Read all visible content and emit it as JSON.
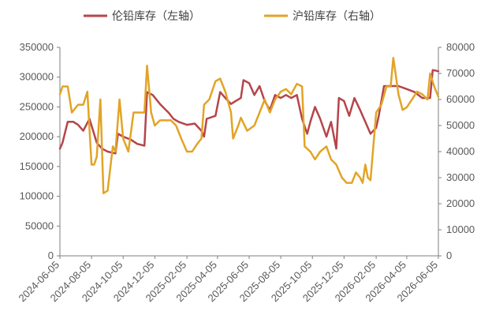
{
  "chart_data": {
    "type": "line",
    "legend_position": "top",
    "grid": false,
    "x_start": "2024-06-05",
    "x_end": "2026-06-05",
    "x_tick_labels": [
      "2024-06-05",
      "2024-08-05",
      "2024-10-05",
      "2024-12-05",
      "2025-02-05",
      "2025-04-05",
      "2025-06-05",
      "2025-08-05",
      "2025-10-05",
      "2025-12-05",
      "2026-02-05",
      "2026-04-05",
      "2026-06-05"
    ],
    "y_left": {
      "range": [
        0,
        350000
      ],
      "tick_labels": [
        "0",
        "50000",
        "100000",
        "150000",
        "200000",
        "250000",
        "300000",
        "350000"
      ]
    },
    "y_right": {
      "range": [
        0,
        80000
      ],
      "tick_labels": [
        "0",
        "10000",
        "20000",
        "30000",
        "40000",
        "50000",
        "60000",
        "70000",
        "80000"
      ]
    },
    "series": [
      {
        "name": "伦铅库存（左轴）",
        "axis": "left",
        "color": "#B5454A",
        "points": [
          [
            "2024-06-05",
            180000
          ],
          [
            "2024-06-10",
            190000
          ],
          [
            "2024-06-20",
            225000
          ],
          [
            "2024-07-01",
            225000
          ],
          [
            "2024-07-10",
            220000
          ],
          [
            "2024-07-20",
            210000
          ],
          [
            "2024-08-01",
            230000
          ],
          [
            "2024-08-08",
            210000
          ],
          [
            "2024-08-15",
            190000
          ],
          [
            "2024-08-25",
            180000
          ],
          [
            "2024-09-05",
            175000
          ],
          [
            "2024-09-20",
            172000
          ],
          [
            "2024-09-25",
            205000
          ],
          [
            "2024-10-05",
            200000
          ],
          [
            "2024-10-20",
            195000
          ],
          [
            "2024-11-01",
            188000
          ],
          [
            "2024-11-15",
            185000
          ],
          [
            "2024-11-20",
            275000
          ],
          [
            "2024-12-01",
            270000
          ],
          [
            "2024-12-15",
            255000
          ],
          [
            "2025-01-01",
            240000
          ],
          [
            "2025-01-10",
            230000
          ],
          [
            "2025-01-20",
            225000
          ],
          [
            "2025-02-05",
            220000
          ],
          [
            "2025-02-20",
            222000
          ],
          [
            "2025-03-05",
            210000
          ],
          [
            "2025-03-10",
            200000
          ],
          [
            "2025-03-15",
            230000
          ],
          [
            "2025-04-01",
            235000
          ],
          [
            "2025-04-10",
            275000
          ],
          [
            "2025-04-20",
            265000
          ],
          [
            "2025-05-01",
            255000
          ],
          [
            "2025-05-10",
            260000
          ],
          [
            "2025-05-20",
            265000
          ],
          [
            "2025-05-25",
            295000
          ],
          [
            "2025-06-05",
            290000
          ],
          [
            "2025-06-15",
            270000
          ],
          [
            "2025-06-25",
            285000
          ],
          [
            "2025-07-05",
            260000
          ],
          [
            "2025-07-15",
            245000
          ],
          [
            "2025-07-25",
            270000
          ],
          [
            "2025-08-05",
            265000
          ],
          [
            "2025-08-15",
            270000
          ],
          [
            "2025-08-25",
            265000
          ],
          [
            "2025-09-05",
            270000
          ],
          [
            "2025-09-15",
            230000
          ],
          [
            "2025-09-25",
            205000
          ],
          [
            "2025-10-01",
            225000
          ],
          [
            "2025-10-10",
            250000
          ],
          [
            "2025-10-20",
            230000
          ],
          [
            "2025-11-01",
            200000
          ],
          [
            "2025-11-10",
            225000
          ],
          [
            "2025-11-20",
            180000
          ],
          [
            "2025-11-25",
            265000
          ],
          [
            "2025-12-05",
            260000
          ],
          [
            "2025-12-15",
            235000
          ],
          [
            "2025-12-25",
            265000
          ],
          [
            "2026-01-05",
            245000
          ],
          [
            "2026-01-15",
            225000
          ],
          [
            "2026-01-25",
            205000
          ],
          [
            "2026-02-05",
            215000
          ],
          [
            "2026-02-10",
            235000
          ],
          [
            "2026-02-20",
            285000
          ],
          [
            "2026-03-05",
            285000
          ],
          [
            "2026-03-20",
            285000
          ],
          [
            "2026-04-05",
            280000
          ],
          [
            "2026-04-20",
            275000
          ],
          [
            "2026-05-05",
            265000
          ],
          [
            "2026-05-20",
            265000
          ],
          [
            "2026-05-25",
            312000
          ],
          [
            "2026-06-05",
            310000
          ]
        ]
      },
      {
        "name": "沪铅库存（右轴）",
        "axis": "right",
        "color": "#E2A426",
        "points": [
          [
            "2024-06-05",
            62000
          ],
          [
            "2024-06-10",
            65000
          ],
          [
            "2024-06-20",
            65000
          ],
          [
            "2024-06-28",
            55000
          ],
          [
            "2024-07-10",
            58000
          ],
          [
            "2024-07-20",
            58000
          ],
          [
            "2024-07-28",
            63000
          ],
          [
            "2024-08-05",
            35000
          ],
          [
            "2024-08-10",
            35000
          ],
          [
            "2024-08-15",
            38000
          ],
          [
            "2024-08-22",
            60000
          ],
          [
            "2024-08-28",
            24000
          ],
          [
            "2024-09-05",
            25000
          ],
          [
            "2024-09-15",
            42000
          ],
          [
            "2024-09-20",
            40000
          ],
          [
            "2024-09-28",
            60000
          ],
          [
            "2024-10-05",
            45000
          ],
          [
            "2024-10-15",
            40000
          ],
          [
            "2024-10-25",
            55000
          ],
          [
            "2024-11-05",
            55000
          ],
          [
            "2024-11-15",
            55000
          ],
          [
            "2024-11-20",
            73000
          ],
          [
            "2024-11-28",
            55000
          ],
          [
            "2024-12-05",
            50000
          ],
          [
            "2024-12-15",
            52000
          ],
          [
            "2024-12-25",
            52000
          ],
          [
            "2025-01-05",
            52000
          ],
          [
            "2025-01-15",
            50000
          ],
          [
            "2025-01-25",
            45000
          ],
          [
            "2025-02-05",
            40000
          ],
          [
            "2025-02-15",
            40000
          ],
          [
            "2025-02-25",
            43000
          ],
          [
            "2025-03-05",
            45000
          ],
          [
            "2025-03-10",
            58000
          ],
          [
            "2025-03-20",
            60000
          ],
          [
            "2025-04-01",
            67000
          ],
          [
            "2025-04-10",
            68000
          ],
          [
            "2025-04-20",
            63000
          ],
          [
            "2025-05-01",
            55000
          ],
          [
            "2025-05-05",
            45000
          ],
          [
            "2025-05-15",
            50000
          ],
          [
            "2025-05-20",
            53000
          ],
          [
            "2025-06-01",
            48000
          ],
          [
            "2025-06-15",
            50000
          ],
          [
            "2025-06-25",
            55000
          ],
          [
            "2025-07-05",
            60000
          ],
          [
            "2025-07-15",
            55000
          ],
          [
            "2025-07-25",
            60000
          ],
          [
            "2025-08-05",
            63000
          ],
          [
            "2025-08-15",
            64000
          ],
          [
            "2025-08-25",
            62000
          ],
          [
            "2025-09-05",
            66000
          ],
          [
            "2025-09-15",
            65000
          ],
          [
            "2025-09-20",
            42000
          ],
          [
            "2025-10-01",
            40000
          ],
          [
            "2025-10-10",
            37000
          ],
          [
            "2025-10-20",
            40000
          ],
          [
            "2025-11-01",
            42000
          ],
          [
            "2025-11-10",
            37000
          ],
          [
            "2025-11-20",
            35000
          ],
          [
            "2025-12-01",
            30000
          ],
          [
            "2025-12-10",
            28000
          ],
          [
            "2025-12-20",
            28000
          ],
          [
            "2025-12-28",
            32000
          ],
          [
            "2026-01-05",
            30000
          ],
          [
            "2026-01-10",
            28000
          ],
          [
            "2026-01-15",
            35000
          ],
          [
            "2026-01-20",
            30000
          ],
          [
            "2026-01-25",
            29000
          ],
          [
            "2026-02-05",
            55000
          ],
          [
            "2026-02-15",
            58000
          ],
          [
            "2026-02-25",
            65000
          ],
          [
            "2026-03-05",
            65000
          ],
          [
            "2026-03-10",
            76000
          ],
          [
            "2026-03-20",
            62000
          ],
          [
            "2026-03-28",
            56000
          ],
          [
            "2026-04-05",
            57000
          ],
          [
            "2026-04-15",
            60000
          ],
          [
            "2026-04-25",
            63000
          ],
          [
            "2026-05-05",
            62000
          ],
          [
            "2026-05-15",
            60000
          ],
          [
            "2026-05-20",
            70000
          ],
          [
            "2026-05-28",
            65000
          ],
          [
            "2026-06-05",
            61000
          ]
        ]
      }
    ]
  }
}
